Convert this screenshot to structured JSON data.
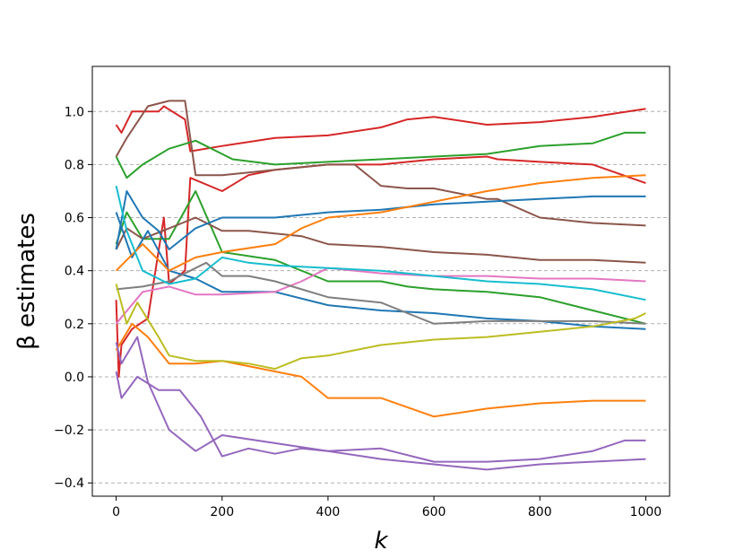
{
  "chart_data": {
    "type": "line",
    "title": "",
    "xlabel": "k",
    "ylabel": "β estimates",
    "xlim": [
      -45,
      1045
    ],
    "ylim": [
      -0.45,
      1.17
    ],
    "x_ticks": [
      0,
      200,
      400,
      600,
      800,
      1000
    ],
    "x_tick_labels": [
      "0",
      "200",
      "400",
      "600",
      "800",
      "1000"
    ],
    "y_ticks": [
      -0.4,
      -0.2,
      0.0,
      0.2,
      0.4,
      0.6,
      0.8,
      1.0
    ],
    "y_tick_labels": [
      "−0.4",
      "−0.2",
      "0.0",
      "0.2",
      "0.4",
      "0.6",
      "0.8",
      "1.0"
    ],
    "grid": "horizontal-dashed",
    "legend": "none",
    "colors": {
      "blue": "#1f77b4",
      "orange": "#ff7f0e",
      "green": "#2ca02c",
      "red": "#d62728",
      "purple": "#9467bd",
      "brown": "#8c564b",
      "pink": "#e377c2",
      "gray": "#7f7f7f",
      "olive": "#bcbd22",
      "cyan": "#17becf"
    },
    "series": [
      {
        "color": "#d62728",
        "x": [
          0,
          10,
          30,
          80,
          90,
          130,
          140,
          200,
          300,
          400,
          500,
          550,
          600,
          700,
          800,
          900,
          1000
        ],
        "y": [
          0.95,
          0.92,
          1.0,
          1.0,
          1.02,
          0.97,
          0.85,
          0.87,
          0.9,
          0.91,
          0.94,
          0.97,
          0.98,
          0.95,
          0.96,
          0.98,
          1.01
        ]
      },
      {
        "color": "#d62728",
        "x": [
          0,
          5,
          10,
          30,
          60,
          90,
          100,
          130,
          140,
          200,
          250,
          300,
          400,
          500,
          600,
          700,
          720,
          800,
          900,
          1000
        ],
        "y": [
          0.29,
          0.0,
          0.12,
          0.18,
          0.22,
          0.6,
          0.35,
          0.4,
          0.75,
          0.7,
          0.76,
          0.78,
          0.8,
          0.8,
          0.82,
          0.83,
          0.82,
          0.81,
          0.8,
          0.73
        ]
      },
      {
        "color": "#2ca02c",
        "x": [
          0,
          20,
          50,
          100,
          150,
          200,
          220,
          300,
          400,
          500,
          600,
          700,
          800,
          900,
          960,
          1000
        ],
        "y": [
          0.83,
          0.75,
          0.8,
          0.86,
          0.89,
          0.84,
          0.82,
          0.8,
          0.81,
          0.82,
          0.83,
          0.84,
          0.87,
          0.88,
          0.92,
          0.92
        ]
      },
      {
        "color": "#2ca02c",
        "x": [
          0,
          20,
          50,
          100,
          150,
          200,
          300,
          400,
          500,
          550,
          600,
          700,
          800,
          900,
          1000
        ],
        "y": [
          0.5,
          0.62,
          0.52,
          0.52,
          0.7,
          0.47,
          0.44,
          0.36,
          0.36,
          0.34,
          0.33,
          0.32,
          0.3,
          0.25,
          0.2
        ]
      },
      {
        "color": "#8c564b",
        "x": [
          0,
          20,
          60,
          100,
          130,
          150,
          200,
          300,
          400,
          450,
          500,
          550,
          600,
          700,
          720,
          800,
          900,
          1000
        ],
        "y": [
          0.83,
          0.9,
          1.02,
          1.04,
          1.04,
          0.76,
          0.76,
          0.78,
          0.8,
          0.8,
          0.72,
          0.71,
          0.71,
          0.67,
          0.67,
          0.6,
          0.58,
          0.57
        ]
      },
      {
        "color": "#8c564b",
        "x": [
          0,
          20,
          50,
          100,
          150,
          200,
          250,
          300,
          350,
          400,
          500,
          600,
          700,
          800,
          900,
          1000
        ],
        "y": [
          0.48,
          0.56,
          0.52,
          0.56,
          0.6,
          0.55,
          0.55,
          0.54,
          0.53,
          0.5,
          0.49,
          0.47,
          0.46,
          0.44,
          0.44,
          0.43
        ]
      },
      {
        "color": "#1f77b4",
        "x": [
          0,
          20,
          50,
          80,
          100,
          150,
          200,
          300,
          400,
          500,
          600,
          700,
          800,
          900,
          1000
        ],
        "y": [
          0.48,
          0.7,
          0.6,
          0.55,
          0.48,
          0.56,
          0.6,
          0.6,
          0.62,
          0.63,
          0.65,
          0.66,
          0.67,
          0.68,
          0.68
        ]
      },
      {
        "color": "#1f77b4",
        "x": [
          0,
          30,
          60,
          100,
          150,
          200,
          300,
          400,
          500,
          600,
          700,
          800,
          900,
          1000
        ],
        "y": [
          0.62,
          0.45,
          0.55,
          0.4,
          0.37,
          0.32,
          0.32,
          0.27,
          0.25,
          0.24,
          0.22,
          0.21,
          0.19,
          0.18
        ]
      },
      {
        "color": "#ff7f0e",
        "x": [
          0,
          50,
          100,
          150,
          200,
          300,
          350,
          400,
          500,
          600,
          700,
          800,
          900,
          1000
        ],
        "y": [
          0.4,
          0.5,
          0.4,
          0.45,
          0.47,
          0.5,
          0.56,
          0.6,
          0.62,
          0.66,
          0.7,
          0.73,
          0.75,
          0.76
        ]
      },
      {
        "color": "#ff7f0e",
        "x": [
          0,
          30,
          60,
          100,
          150,
          200,
          300,
          350,
          400,
          500,
          600,
          700,
          800,
          900,
          1000
        ],
        "y": [
          0.1,
          0.2,
          0.15,
          0.05,
          0.05,
          0.06,
          0.02,
          0.0,
          -0.08,
          -0.08,
          -0.15,
          -0.12,
          -0.1,
          -0.09,
          -0.09
        ]
      },
      {
        "color": "#9467bd",
        "x": [
          0,
          10,
          40,
          80,
          120,
          160,
          200,
          250,
          300,
          350,
          400,
          500,
          600,
          700,
          800,
          900,
          1000
        ],
        "y": [
          0.02,
          -0.08,
          0.0,
          -0.05,
          -0.05,
          -0.15,
          -0.3,
          -0.27,
          -0.29,
          -0.27,
          -0.28,
          -0.31,
          -0.33,
          -0.35,
          -0.33,
          -0.32,
          -0.31
        ]
      },
      {
        "color": "#9467bd",
        "x": [
          0,
          10,
          40,
          60,
          100,
          150,
          200,
          300,
          400,
          500,
          600,
          700,
          800,
          900,
          960,
          1000
        ],
        "y": [
          0.13,
          0.05,
          0.15,
          -0.02,
          -0.2,
          -0.28,
          -0.22,
          -0.25,
          -0.28,
          -0.27,
          -0.32,
          -0.32,
          -0.31,
          -0.28,
          -0.24,
          -0.24
        ]
      },
      {
        "color": "#e377c2",
        "x": [
          0,
          50,
          100,
          150,
          200,
          300,
          350,
          400,
          500,
          600,
          700,
          800,
          900,
          1000
        ],
        "y": [
          0.2,
          0.32,
          0.34,
          0.31,
          0.31,
          0.32,
          0.36,
          0.41,
          0.39,
          0.38,
          0.38,
          0.37,
          0.37,
          0.36
        ]
      },
      {
        "color": "#7f7f7f",
        "x": [
          0,
          50,
          100,
          140,
          170,
          200,
          250,
          300,
          400,
          500,
          550,
          600,
          700,
          800,
          900,
          1000
        ],
        "y": [
          0.33,
          0.34,
          0.36,
          0.4,
          0.43,
          0.38,
          0.38,
          0.36,
          0.3,
          0.28,
          0.24,
          0.2,
          0.21,
          0.21,
          0.21,
          0.2
        ]
      },
      {
        "color": "#bcbd22",
        "x": [
          0,
          20,
          40,
          80,
          100,
          150,
          200,
          250,
          300,
          350,
          400,
          450,
          500,
          600,
          700,
          800,
          900,
          980,
          1000
        ],
        "y": [
          0.35,
          0.2,
          0.28,
          0.15,
          0.08,
          0.06,
          0.06,
          0.05,
          0.03,
          0.07,
          0.08,
          0.1,
          0.12,
          0.14,
          0.15,
          0.17,
          0.19,
          0.22,
          0.24
        ]
      },
      {
        "color": "#17becf",
        "x": [
          0,
          20,
          50,
          100,
          150,
          200,
          250,
          300,
          400,
          500,
          600,
          700,
          800,
          900,
          1000
        ],
        "y": [
          0.72,
          0.55,
          0.4,
          0.35,
          0.37,
          0.45,
          0.43,
          0.42,
          0.41,
          0.4,
          0.38,
          0.36,
          0.35,
          0.33,
          0.29
        ]
      }
    ]
  }
}
